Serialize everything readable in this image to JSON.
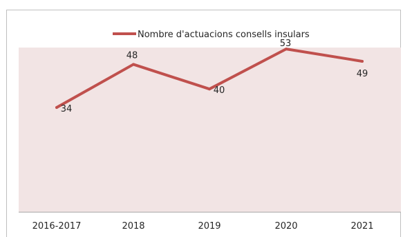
{
  "chart_data": {
    "type": "line",
    "categories": [
      "2016-2017",
      "2018",
      "2019",
      "2020",
      "2021"
    ],
    "series": [
      {
        "name": "Nombre d'actuacions consells insulars",
        "values": [
          34,
          48,
          40,
          53,
          49
        ]
      }
    ],
    "data_labels": [
      "34",
      "48",
      "40",
      "53",
      "49"
    ],
    "ylim": [
      0,
      60
    ],
    "grid": false,
    "legend": "top-center",
    "colors": {
      "series": "#c0504d",
      "plot_bg": "#f2e4e4",
      "text": "#262626"
    }
  }
}
